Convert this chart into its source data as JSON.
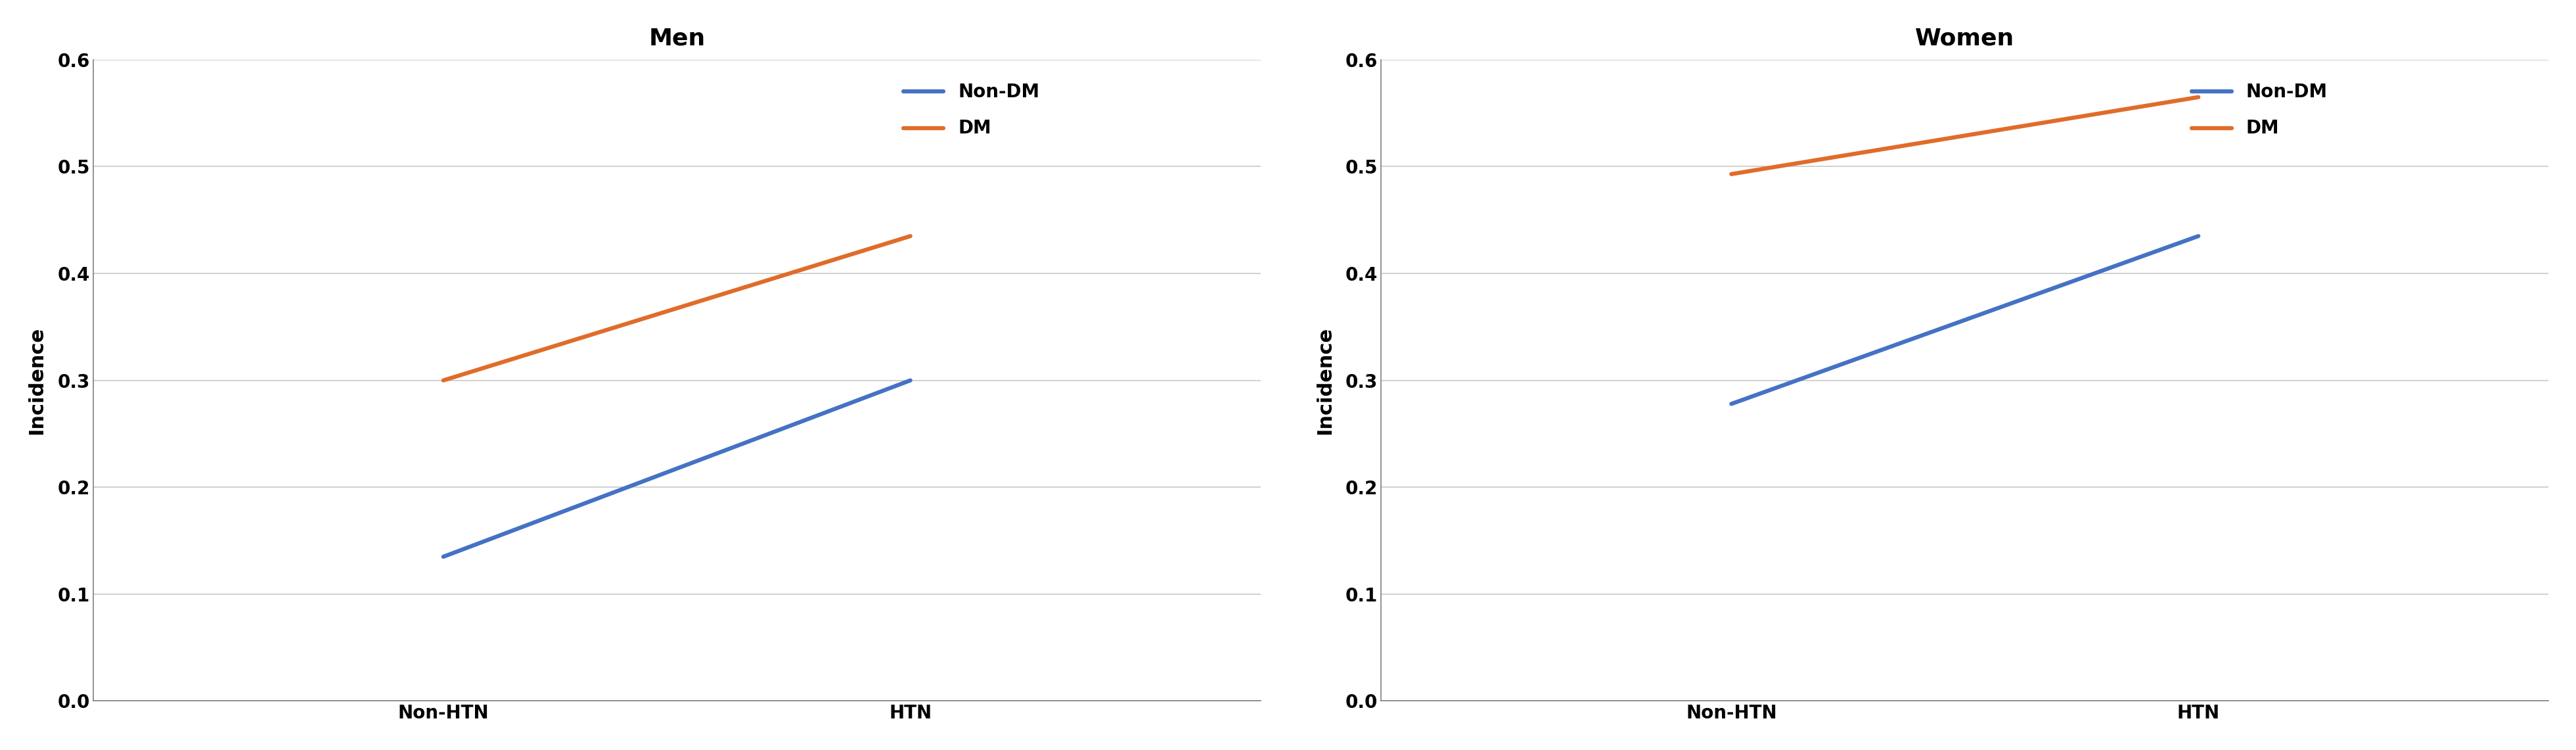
{
  "men": {
    "title": "Men",
    "x_labels": [
      "Non-HTN",
      "HTN"
    ],
    "non_dm": [
      0.135,
      0.3
    ],
    "dm": [
      0.3,
      0.435
    ],
    "non_dm_color": "#4472C4",
    "dm_color": "#E06C2A",
    "ylabel": "Incidence",
    "ylim": [
      0.0,
      0.6
    ],
    "yticks": [
      0.0,
      0.1,
      0.2,
      0.3,
      0.4,
      0.5,
      0.6
    ]
  },
  "women": {
    "title": "Women",
    "x_labels": [
      "Non-HTN",
      "HTN"
    ],
    "non_dm": [
      0.278,
      0.435
    ],
    "dm": [
      0.493,
      0.565
    ],
    "non_dm_color": "#4472C4",
    "dm_color": "#E06C2A",
    "ylabel": "Incidence",
    "ylim": [
      0.0,
      0.6
    ],
    "yticks": [
      0.0,
      0.1,
      0.2,
      0.3,
      0.4,
      0.5,
      0.6
    ]
  },
  "legend_labels": [
    "Non-DM",
    "DM"
  ],
  "line_width": 4.5,
  "font_size_title": 26,
  "font_size_labels": 22,
  "font_size_ticks": 20,
  "font_size_legend": 20,
  "background_color": "#FFFFFF",
  "grid_color": "#C8C8C8",
  "x_positions": [
    0,
    1
  ],
  "xlim": [
    -0.75,
    1.75
  ]
}
